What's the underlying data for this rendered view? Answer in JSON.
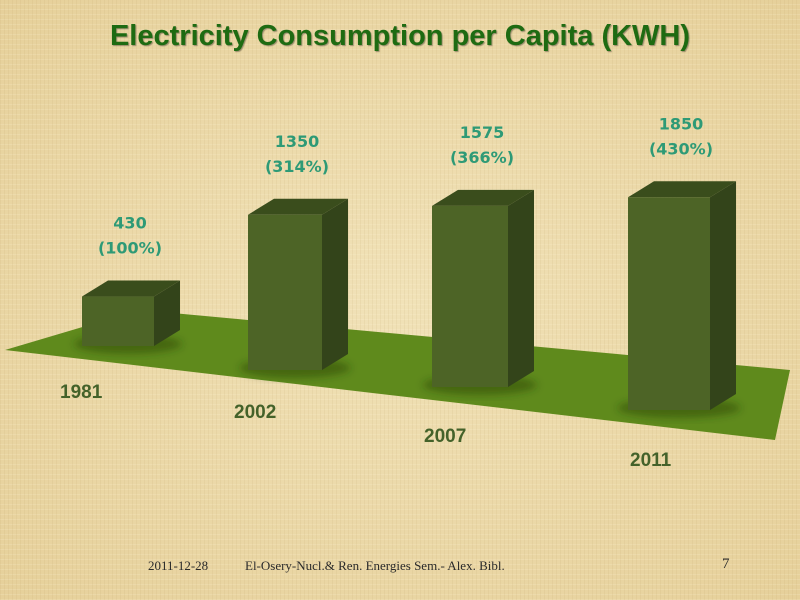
{
  "slide": {
    "title": "Electricity Consumption per Capita (KWH)",
    "footer": {
      "date": "2011-12-28",
      "center": "El-Osery-Nucl.& Ren. Energies Sem.- Alex. Bibl.",
      "page": "7"
    }
  },
  "colors": {
    "title": "#1e6b12",
    "bar_front": "#4d6426",
    "bar_top": "#3a4d1c",
    "bar_side": "#33441a",
    "floor": "#5f8a1c",
    "data_label": "#2e9a76",
    "category_label": "#44622a"
  },
  "chart_data": {
    "type": "bar",
    "style": "3d-column",
    "title": "Electricity Consumption per Capita (KWH)",
    "xlabel": "",
    "ylabel": "",
    "categories": [
      "1981",
      "2002",
      "2007",
      "2011"
    ],
    "values": [
      430,
      1350,
      1575,
      1850
    ],
    "data_labels": [
      [
        "430",
        "(100%)"
      ],
      [
        "1350",
        "(314%)"
      ],
      [
        "1575",
        "(366%)"
      ],
      [
        "1850",
        "(430%)"
      ]
    ],
    "percent_of_1981": [
      100,
      314,
      366,
      430
    ],
    "ylim": [
      0,
      2000
    ],
    "grid": false,
    "legend": "none"
  }
}
